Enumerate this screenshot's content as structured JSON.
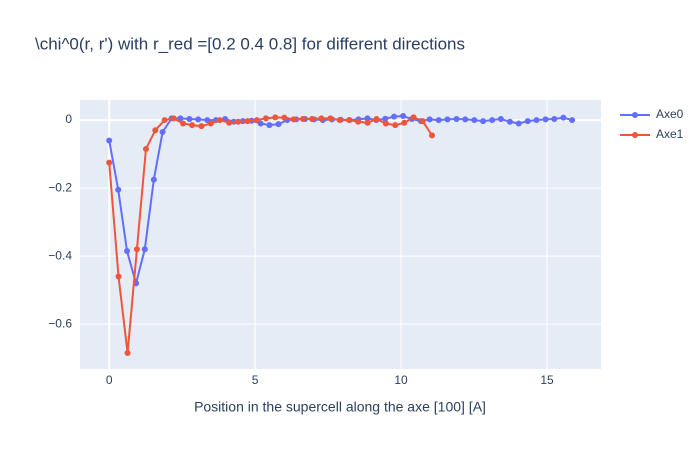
{
  "chart_data": {
    "type": "line",
    "title": "\\chi^0(r, r') with r_red =[0.2 0.4 0.8] for different directions",
    "x_label": "Position in the supercell along the axe [100] [A]",
    "xlim": [
      -1,
      16.85
    ],
    "xticks": [
      0,
      5,
      10,
      15
    ],
    "ylim": [
      -0.732,
      0.059
    ],
    "yticks": [
      0,
      {
        "value": -0.2,
        "label": "−0.2"
      },
      {
        "value": -0.4,
        "label": "−0.4"
      },
      {
        "value": -0.6,
        "label": "−0.6"
      }
    ],
    "grid": true,
    "legend": "outside-right",
    "series": [
      {
        "name": "Axe0",
        "color": "#636efa",
        "x": [
          0,
          0.31,
          0.61,
          0.92,
          1.22,
          1.53,
          1.83,
          2.14,
          2.44,
          2.75,
          3.05,
          3.36,
          3.66,
          3.97,
          4.27,
          4.58,
          4.88,
          5.19,
          5.49,
          5.8,
          6.1,
          6.41,
          6.71,
          7.02,
          7.32,
          7.63,
          7.93,
          8.24,
          8.54,
          8.85,
          9.15,
          9.46,
          9.76,
          10.07,
          10.37,
          10.68,
          10.98,
          11.29,
          11.59,
          11.9,
          12.2,
          12.51,
          12.81,
          13.12,
          13.42,
          13.73,
          14.03,
          14.34,
          14.64,
          14.95,
          15.25,
          15.56,
          15.86
        ],
        "values": [
          -0.06,
          -0.205,
          -0.385,
          -0.48,
          -0.38,
          -0.175,
          -0.035,
          0.005,
          0.005,
          0.003,
          0.002,
          0.0,
          0.0,
          0.003,
          -0.005,
          -0.003,
          -0.002,
          -0.01,
          -0.015,
          -0.012,
          0.0,
          0.002,
          0.003,
          0.002,
          0.0,
          0.002,
          0.001,
          0.0,
          0.002,
          0.005,
          0.0,
          0.004,
          0.01,
          0.012,
          0.003,
          -0.003,
          0.002,
          0.0,
          0.002,
          0.003,
          0.002,
          0.0,
          -0.003,
          0.0,
          0.003,
          -0.005,
          -0.01,
          -0.003,
          0.0,
          0.002,
          0.003,
          0.007,
          0.0
        ]
      },
      {
        "name": "Axe1",
        "color": "#EF553B",
        "x": [
          0,
          0.32,
          0.63,
          0.95,
          1.26,
          1.58,
          1.9,
          2.21,
          2.53,
          2.84,
          3.16,
          3.48,
          3.79,
          4.11,
          4.42,
          4.74,
          5.06,
          5.37,
          5.69,
          6.0,
          6.32,
          6.64,
          6.95,
          7.27,
          7.58,
          7.9,
          8.22,
          8.53,
          8.85,
          9.16,
          9.48,
          9.8,
          10.11,
          10.43,
          10.74,
          11.06
        ],
        "values": [
          -0.125,
          -0.46,
          -0.685,
          -0.38,
          -0.085,
          -0.03,
          0.0,
          0.005,
          -0.01,
          -0.015,
          -0.018,
          -0.01,
          0.0,
          -0.008,
          -0.005,
          -0.003,
          0.0,
          0.005,
          0.008,
          0.007,
          0.002,
          0.003,
          0.003,
          0.005,
          0.005,
          0.0,
          0.0,
          -0.005,
          -0.008,
          0.003,
          -0.01,
          -0.015,
          -0.008,
          0.008,
          -0.003,
          -0.045
        ]
      }
    ]
  }
}
